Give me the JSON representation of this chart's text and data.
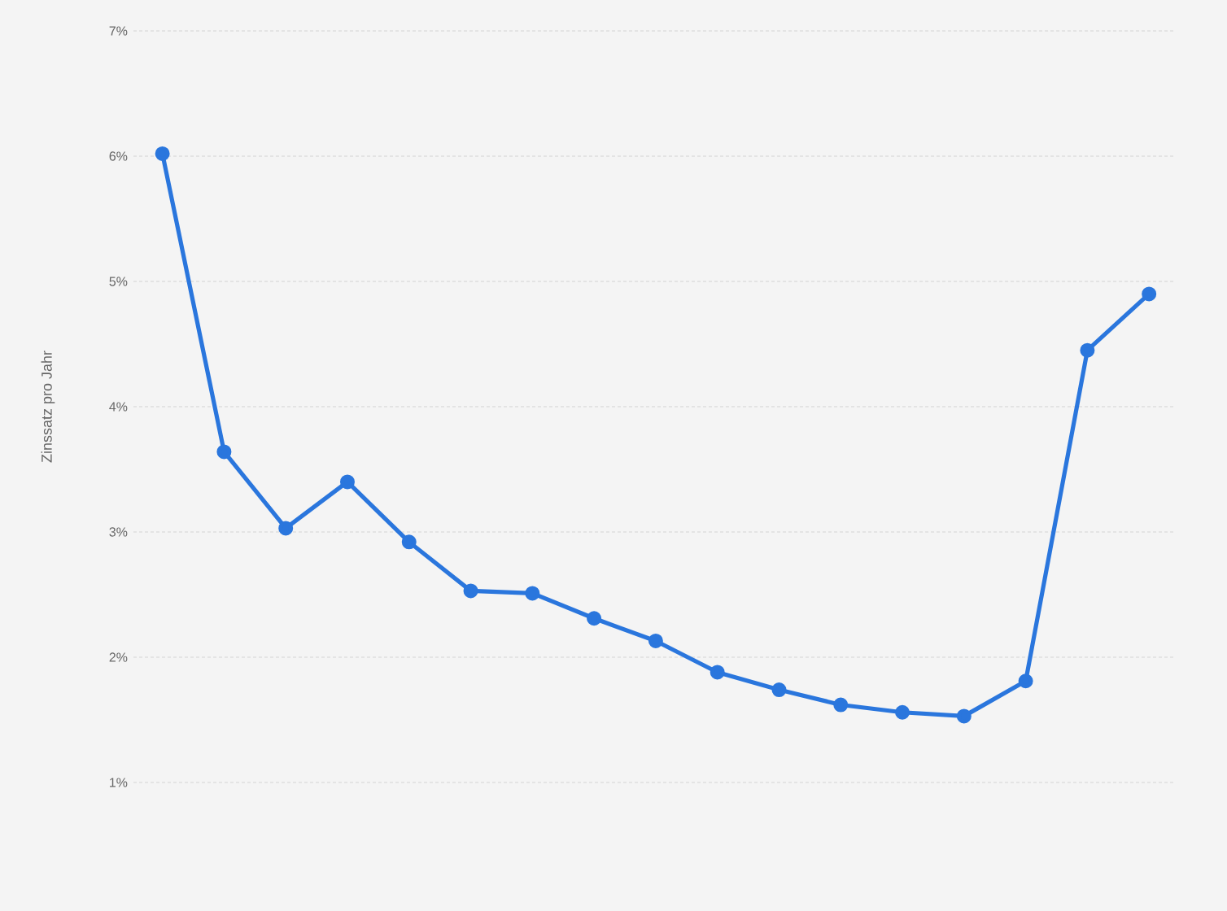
{
  "chart_data": {
    "type": "line",
    "ylabel": "Zinssatz pro Jahr",
    "categories": [
      null,
      null,
      null,
      null,
      null,
      null,
      null,
      null,
      null,
      null,
      null,
      null,
      null,
      null,
      null,
      null,
      null
    ],
    "series": [
      {
        "color": "#2a76dd",
        "values": [
          6.02,
          3.64,
          3.03,
          3.4,
          2.92,
          2.53,
          2.51,
          2.31,
          2.13,
          1.88,
          1.74,
          1.62,
          1.56,
          1.53,
          1.81,
          4.45,
          4.9
        ]
      }
    ],
    "ylim": [
      1,
      7
    ],
    "yticks": [
      {
        "value": 1,
        "label": "1%"
      },
      {
        "value": 2,
        "label": "2%"
      },
      {
        "value": 3,
        "label": "3%"
      },
      {
        "value": 4,
        "label": "4%"
      },
      {
        "value": 5,
        "label": "5%"
      },
      {
        "value": 6,
        "label": "6%"
      },
      {
        "value": 7,
        "label": "7%"
      }
    ],
    "grid": "y",
    "marker": "circle",
    "line_style": "solid"
  }
}
